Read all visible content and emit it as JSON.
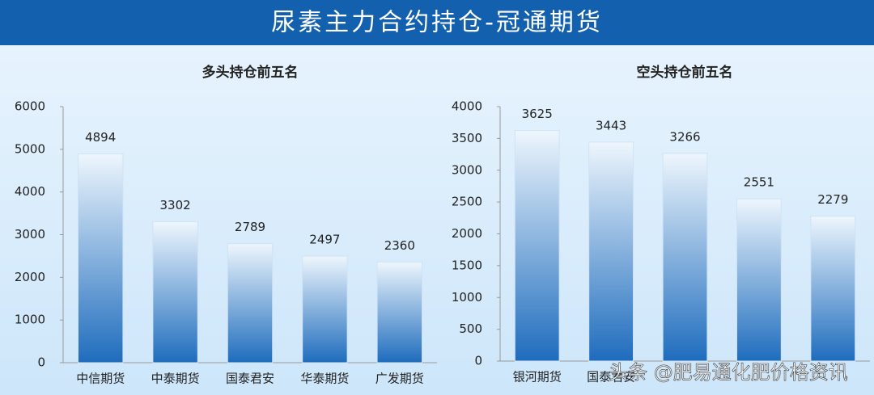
{
  "header": {
    "title": "尿素主力合约持仓-冠通期货"
  },
  "chart_data": [
    {
      "type": "bar",
      "title": "多头持仓前五名",
      "categories": [
        "中信期货",
        "中泰期货",
        "国泰君安",
        "华泰期货",
        "广发期货"
      ],
      "values": [
        4894,
        3302,
        2789,
        2497,
        2360
      ],
      "ylim": [
        0,
        6000
      ],
      "yticks": [
        0,
        1000,
        2000,
        3000,
        4000,
        5000,
        6000
      ],
      "color": "#1e6cbd"
    },
    {
      "type": "bar",
      "title": "空头持仓前五名",
      "categories": [
        "银河期货",
        "国泰君安",
        null,
        null,
        null
      ],
      "values": [
        3625,
        3443,
        3266,
        2551,
        2279
      ],
      "ylim": [
        0,
        4000
      ],
      "yticks": [
        0,
        500,
        1000,
        1500,
        2000,
        2500,
        3000,
        3500,
        4000
      ],
      "color": "#1e6cbd"
    }
  ],
  "watermark": "头条 @肥易通化肥价格资讯"
}
